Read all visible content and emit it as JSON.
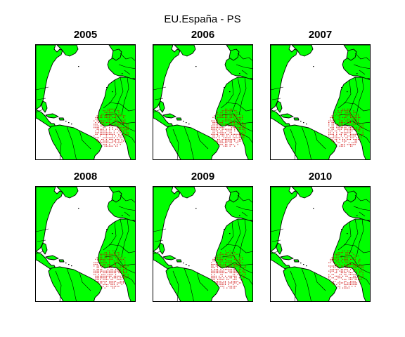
{
  "title": "EU.España - PS",
  "colors": {
    "land": "#00ff00",
    "border": "#000000",
    "catch": "#cc0000",
    "frame": "#000000"
  },
  "panels": [
    {
      "year": "2005"
    },
    {
      "year": "2006"
    },
    {
      "year": "2007"
    },
    {
      "year": "2008"
    },
    {
      "year": "2009"
    },
    {
      "year": "2010"
    }
  ]
}
